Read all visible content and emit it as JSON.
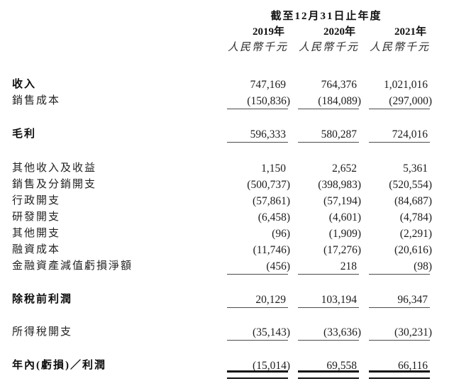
{
  "header": {
    "period_title": "截至12月31日止年度",
    "columns": [
      {
        "year": "2019年",
        "unit": "人民幣千元"
      },
      {
        "year": "2020年",
        "unit": "人民幣千元"
      },
      {
        "year": "2021年",
        "unit": "人民幣千元"
      }
    ]
  },
  "table": {
    "rows": [
      {
        "label": "收入",
        "values": [
          "747,169",
          "764,376",
          "1,021,016"
        ],
        "emphasis": "bold",
        "rule": "none"
      },
      {
        "label": "銷售成本",
        "values": [
          "(150,836)",
          "(184,089)",
          "(297,000)"
        ],
        "emphasis": "normal",
        "rule": "single"
      },
      {
        "label": "毛利",
        "values": [
          "596,333",
          "580,287",
          "724,016"
        ],
        "emphasis": "bold",
        "rule": "single"
      },
      {
        "label": "其他收入及收益",
        "values": [
          "1,150",
          "2,652",
          "5,361"
        ],
        "emphasis": "normal",
        "rule": "none"
      },
      {
        "label": "銷售及分銷開支",
        "values": [
          "(500,737)",
          "(398,983)",
          "(520,554)"
        ],
        "emphasis": "normal",
        "rule": "none"
      },
      {
        "label": "行政開支",
        "values": [
          "(57,861)",
          "(57,194)",
          "(84,687)"
        ],
        "emphasis": "normal",
        "rule": "none"
      },
      {
        "label": "研發開支",
        "values": [
          "(6,458)",
          "(4,601)",
          "(4,784)"
        ],
        "emphasis": "normal",
        "rule": "none"
      },
      {
        "label": "其他開支",
        "values": [
          "(96)",
          "(1,909)",
          "(2,291)"
        ],
        "emphasis": "normal",
        "rule": "none"
      },
      {
        "label": "融資成本",
        "values": [
          "(11,746)",
          "(17,276)",
          "(20,616)"
        ],
        "emphasis": "normal",
        "rule": "none"
      },
      {
        "label": "金融資產減值虧損淨額",
        "values": [
          "(456)",
          "218",
          "(98)"
        ],
        "emphasis": "normal",
        "rule": "single"
      },
      {
        "label": "除稅前利潤",
        "values": [
          "20,129",
          "103,194",
          "96,347"
        ],
        "emphasis": "bold",
        "rule": "single"
      },
      {
        "label": "所得稅開支",
        "values": [
          "(35,143)",
          "(33,636)",
          "(30,231)"
        ],
        "emphasis": "normal",
        "rule": "single"
      },
      {
        "label": "年內(虧損)／利潤",
        "values": [
          "(15,014)",
          "69,558",
          "66,116"
        ],
        "emphasis": "bold",
        "rule": "double"
      }
    ]
  }
}
